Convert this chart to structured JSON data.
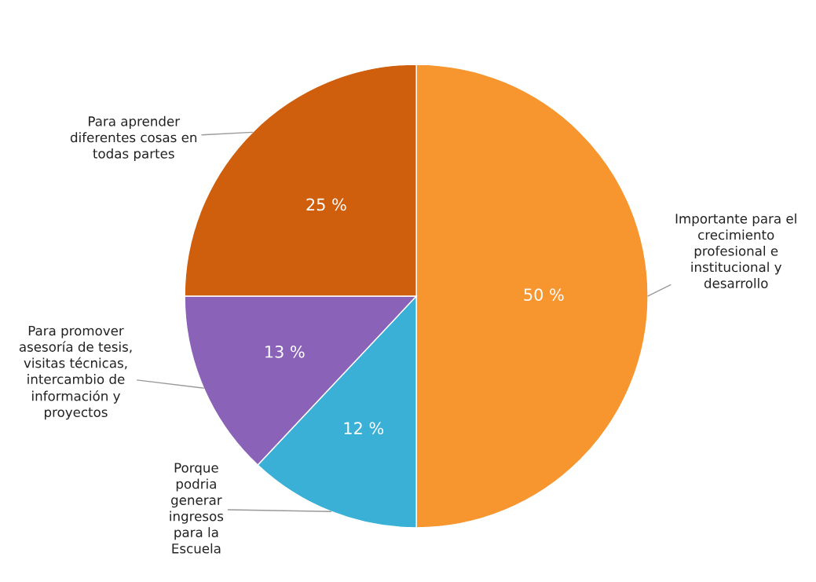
{
  "chart_data": {
    "type": "pie",
    "categories": [
      "Importante para el\ncrecimiento\nprofesional e\ninstitucional y\ndesarrollo",
      "Porque\npodria\ngenerar\ningresos\npara la\nEscuela",
      "Para promover\nasesoría de tesis,\nvisitas técnicas,\nintercambio de\ninformación y\nproyectos",
      "Para aprender\ndiferentes cosas en\ntodas partes"
    ],
    "values": [
      50,
      12,
      13,
      25
    ],
    "value_labels": [
      "50 %",
      "12 %",
      "13 %",
      "25 %"
    ],
    "colors": [
      "#f7952f",
      "#3ab0d6",
      "#8a62b8",
      "#cf5f0d"
    ],
    "legend": false
  }
}
